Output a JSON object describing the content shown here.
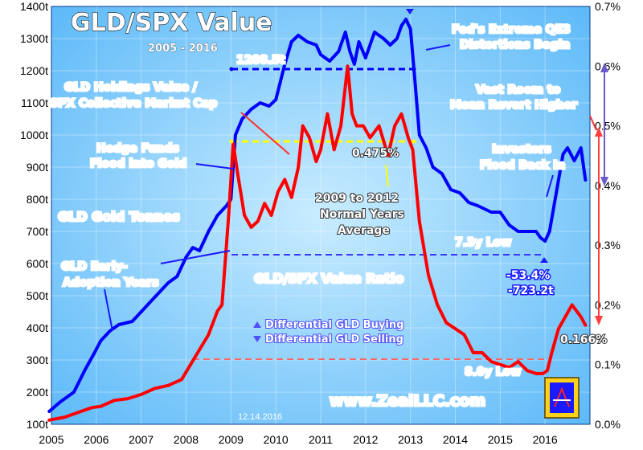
{
  "chart_data": {
    "type": "line",
    "title": "GLD/SPX Value",
    "subtitle": "2005 - 2016",
    "date": "12.14.2016",
    "watermark": "www.ZealLLC.com",
    "x": {
      "ticks": [
        "2005",
        "2006",
        "2007",
        "2008",
        "2009",
        "2010",
        "2011",
        "2012",
        "2013",
        "2014",
        "2015",
        "2016"
      ],
      "range": [
        2005.0,
        2017.0
      ]
    },
    "y_left": {
      "ticks": [
        "100t",
        "200t",
        "300t",
        "400t",
        "500t",
        "600t",
        "700t",
        "800t",
        "900t",
        "1000t",
        "1100t",
        "1200t",
        "1300t",
        "1400t"
      ],
      "range": [
        100,
        1400
      ],
      "unit": "tonnes"
    },
    "y_right": {
      "ticks": [
        "0.0%",
        "0.1%",
        "0.2%",
        "0.3%",
        "0.4%",
        "0.5%",
        "0.6%",
        "0.7%"
      ],
      "range": [
        0.0,
        0.7
      ],
      "unit": "percent"
    },
    "grid": true,
    "colors": {
      "background": "#2a9cf6",
      "plot_bg": "#8fd0fb",
      "gld_line": "#0000ff",
      "ratio_line": "#ff0000",
      "ann_red": "#ff2020",
      "ann_yellow": "#ffff00",
      "ann_blue": "#0000ff"
    },
    "series": [
      {
        "name": "GLD Gold Tonnes",
        "axis": "left",
        "color": "#0000ff",
        "x": [
          2004.95,
          2005.2,
          2005.5,
          2005.75,
          2005.95,
          2006.1,
          2006.3,
          2006.5,
          2006.8,
          2007.0,
          2007.2,
          2007.4,
          2007.6,
          2007.8,
          2008.0,
          2008.15,
          2008.3,
          2008.5,
          2008.7,
          2008.9,
          2009.0,
          2009.1,
          2009.25,
          2009.45,
          2009.65,
          2009.85,
          2010.0,
          2010.2,
          2010.35,
          2010.5,
          2010.7,
          2010.9,
          2011.0,
          2011.2,
          2011.4,
          2011.55,
          2011.65,
          2011.75,
          2011.85,
          2012.0,
          2012.2,
          2012.4,
          2012.55,
          2012.7,
          2012.8,
          2012.9,
          2013.0,
          2013.1,
          2013.2,
          2013.35,
          2013.5,
          2013.7,
          2013.9,
          2014.1,
          2014.3,
          2014.5,
          2014.8,
          2015.0,
          2015.2,
          2015.4,
          2015.6,
          2015.8,
          2015.9,
          2016.0,
          2016.1,
          2016.25,
          2016.4,
          2016.5,
          2016.65,
          2016.8,
          2016.9
        ],
        "values": [
          140,
          170,
          200,
          270,
          320,
          360,
          390,
          410,
          420,
          450,
          480,
          510,
          540,
          560,
          620,
          650,
          640,
          700,
          750,
          780,
          800,
          1000,
          1050,
          1080,
          1100,
          1090,
          1110,
          1220,
          1290,
          1310,
          1290,
          1280,
          1250,
          1230,
          1260,
          1320,
          1260,
          1220,
          1290,
          1240,
          1320,
          1300,
          1280,
          1300,
          1340,
          1360,
          1330,
          1170,
          1000,
          960,
          900,
          880,
          830,
          820,
          790,
          780,
          760,
          760,
          720,
          700,
          700,
          700,
          680,
          670,
          700,
          820,
          940,
          960,
          920,
          960,
          860
        ]
      },
      {
        "name": "GLD/SPX Value Ratio",
        "axis": "right",
        "color": "#ff0000",
        "x": [
          2004.95,
          2005.3,
          2005.6,
          2005.9,
          2006.1,
          2006.4,
          2006.7,
          2007.0,
          2007.3,
          2007.6,
          2007.9,
          2008.1,
          2008.3,
          2008.5,
          2008.7,
          2008.8,
          2008.95,
          2009.05,
          2009.15,
          2009.3,
          2009.45,
          2009.6,
          2009.75,
          2009.9,
          2010.05,
          2010.2,
          2010.35,
          2010.5,
          2010.6,
          2010.75,
          2010.9,
          2011.0,
          2011.15,
          2011.3,
          2011.45,
          2011.6,
          2011.7,
          2011.8,
          2011.95,
          2012.1,
          2012.3,
          2012.5,
          2012.65,
          2012.8,
          2012.95,
          2013.05,
          2013.2,
          2013.4,
          2013.6,
          2013.8,
          2014.0,
          2014.2,
          2014.4,
          2014.6,
          2014.8,
          2015.0,
          2015.2,
          2015.4,
          2015.6,
          2015.8,
          2015.95,
          2016.05,
          2016.15,
          2016.3,
          2016.45,
          2016.6,
          2016.7,
          2016.8,
          2016.9
        ],
        "values": [
          0.007,
          0.012,
          0.02,
          0.028,
          0.03,
          0.04,
          0.043,
          0.05,
          0.06,
          0.065,
          0.075,
          0.1,
          0.125,
          0.15,
          0.19,
          0.2,
          0.35,
          0.47,
          0.42,
          0.35,
          0.33,
          0.34,
          0.37,
          0.35,
          0.39,
          0.41,
          0.38,
          0.43,
          0.5,
          0.48,
          0.44,
          0.46,
          0.52,
          0.46,
          0.5,
          0.6,
          0.52,
          0.5,
          0.5,
          0.48,
          0.5,
          0.45,
          0.5,
          0.52,
          0.48,
          0.46,
          0.34,
          0.25,
          0.2,
          0.17,
          0.16,
          0.15,
          0.12,
          0.12,
          0.105,
          0.1,
          0.095,
          0.105,
          0.09,
          0.085,
          0.085,
          0.09,
          0.12,
          0.16,
          0.18,
          0.2,
          0.19,
          0.18,
          0.166
        ]
      }
    ],
    "annotations": {
      "label_gld_tonnes": "GLD Gold Tonnes",
      "label_ratio": "GLD/SPX Value Ratio",
      "label_holdings_1": "GLD Holdings Value /",
      "label_holdings_2": "SPX Collective Market Cap",
      "hedge_1": "Hedge Funds",
      "hedge_2": "Flood into Gold",
      "early_1": "GLD Early-",
      "early_2": "Adoption Years",
      "fed_1": "Fed's Extreme QE3",
      "fed_2": "Distortions Begin",
      "vast_1": "Vast Room to",
      "vast_2": "Mean Revert Higher",
      "investors_1": "Investors",
      "investors_2": "Flood Back In",
      "peak_tonnes": "1208.5t",
      "avg_ratio": "0.475%",
      "normal_1": "2009 to 2012",
      "normal_2": "Normal Years",
      "normal_3": "Average",
      "low_7": "7.3y Low",
      "drop_pct": "-53.4%",
      "drop_t": "-723.2t",
      "ratio_end": "0.166%",
      "low_8": "8.0y Low",
      "legend_buy": "Differential GLD Buying",
      "legend_sell": "Differential GLD Selling"
    }
  }
}
